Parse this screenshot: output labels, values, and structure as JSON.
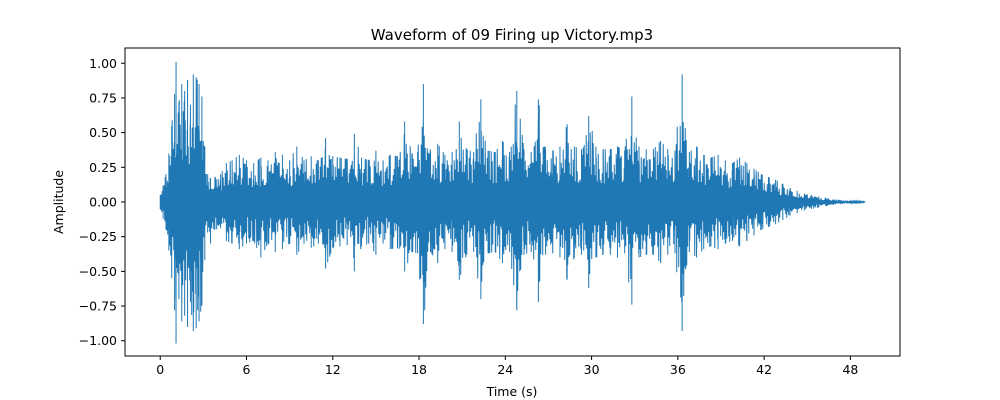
{
  "chart_data": {
    "type": "line",
    "title": "Waveform of 09 Firing up Victory.mp3",
    "xlabel": "Time (s)",
    "ylabel": "Amplitude",
    "xlim": [
      -2.45,
      51.45
    ],
    "ylim": [
      -1.11,
      1.11
    ],
    "x_ticks": [
      0,
      6,
      12,
      18,
      24,
      30,
      36,
      42,
      48
    ],
    "x_tick_labels": [
      "0",
      "6",
      "12",
      "18",
      "24",
      "30",
      "36",
      "42",
      "48"
    ],
    "y_ticks": [
      1.0,
      0.75,
      0.5,
      0.25,
      0.0,
      -0.25,
      -0.5,
      -0.75,
      -1.0
    ],
    "y_tick_labels": [
      "1.00",
      "0.75",
      "0.50",
      "0.25",
      "0.00",
      "−0.25",
      "−0.50",
      "−0.75",
      "−1.00"
    ],
    "grid": false,
    "series_color": "#1f77b4",
    "series": [
      {
        "x": [
          0.0,
          0.2,
          0.4,
          0.6,
          0.8,
          1.0,
          1.1,
          1.3,
          1.5,
          1.7,
          1.9,
          2.1,
          2.3,
          2.5,
          2.7,
          2.9,
          3.1,
          3.3,
          3.5,
          3.8,
          4.2,
          4.6,
          5.0,
          5.5,
          6.0,
          6.5,
          7.0,
          7.5,
          8.0,
          8.5,
          9.0,
          9.5,
          10.0,
          10.5,
          11.0,
          11.5,
          12.0,
          12.5,
          13.0,
          13.5,
          14.0,
          14.5,
          15.0,
          15.5,
          16.0,
          16.5,
          17.0,
          17.5,
          17.9,
          18.3,
          18.8,
          19.3,
          19.8,
          20.3,
          20.8,
          21.3,
          21.8,
          22.3,
          22.8,
          23.3,
          23.8,
          24.3,
          24.8,
          25.3,
          25.8,
          26.3,
          26.8,
          27.3,
          27.8,
          28.3,
          28.8,
          29.3,
          29.8,
          30.3,
          30.8,
          31.3,
          31.8,
          32.3,
          32.8,
          33.3,
          33.8,
          34.3,
          34.8,
          35.3,
          35.8,
          36.3,
          36.8,
          37.3,
          37.8,
          38.3,
          38.8,
          39.3,
          39.8,
          40.3,
          40.8,
          41.3,
          41.8,
          42.3,
          42.8,
          43.3,
          43.8,
          44.3,
          44.8,
          45.3,
          45.8,
          46.3,
          46.8,
          47.3,
          47.8,
          48.3,
          48.8,
          49.0
        ],
        "max": [
          0.05,
          0.12,
          0.2,
          0.35,
          0.55,
          0.78,
          1.01,
          0.72,
          0.85,
          0.8,
          0.88,
          0.7,
          0.92,
          0.9,
          0.85,
          0.76,
          0.4,
          0.2,
          0.17,
          0.18,
          0.2,
          0.28,
          0.3,
          0.34,
          0.3,
          0.28,
          0.32,
          0.3,
          0.36,
          0.34,
          0.3,
          0.4,
          0.3,
          0.33,
          0.3,
          0.46,
          0.33,
          0.32,
          0.31,
          0.49,
          0.32,
          0.3,
          0.37,
          0.3,
          0.34,
          0.33,
          0.58,
          0.35,
          0.36,
          0.85,
          0.36,
          0.42,
          0.34,
          0.36,
          0.58,
          0.38,
          0.36,
          0.74,
          0.37,
          0.36,
          0.44,
          0.36,
          0.8,
          0.38,
          0.36,
          0.74,
          0.38,
          0.37,
          0.4,
          0.56,
          0.4,
          0.38,
          0.62,
          0.4,
          0.38,
          0.38,
          0.4,
          0.37,
          0.76,
          0.4,
          0.38,
          0.38,
          0.44,
          0.38,
          0.37,
          0.92,
          0.36,
          0.4,
          0.34,
          0.32,
          0.34,
          0.3,
          0.28,
          0.32,
          0.28,
          0.24,
          0.2,
          0.18,
          0.16,
          0.13,
          0.1,
          0.08,
          0.06,
          0.05,
          0.04,
          0.03,
          0.02,
          0.015,
          0.01,
          0.008,
          0.005,
          0.004
        ],
        "min": [
          -0.05,
          -0.12,
          -0.2,
          -0.35,
          -0.55,
          -0.78,
          -1.02,
          -0.7,
          -0.86,
          -0.82,
          -0.9,
          -0.72,
          -0.93,
          -0.91,
          -0.86,
          -0.74,
          -0.42,
          -0.22,
          -0.3,
          -0.2,
          -0.19,
          -0.28,
          -0.3,
          -0.34,
          -0.3,
          -0.28,
          -0.4,
          -0.3,
          -0.36,
          -0.34,
          -0.3,
          -0.38,
          -0.3,
          -0.33,
          -0.3,
          -0.48,
          -0.33,
          -0.32,
          -0.31,
          -0.5,
          -0.32,
          -0.3,
          -0.38,
          -0.3,
          -0.34,
          -0.33,
          -0.5,
          -0.36,
          -0.37,
          -0.88,
          -0.36,
          -0.44,
          -0.34,
          -0.36,
          -0.56,
          -0.38,
          -0.36,
          -0.7,
          -0.37,
          -0.36,
          -0.44,
          -0.36,
          -0.78,
          -0.38,
          -0.36,
          -0.72,
          -0.38,
          -0.37,
          -0.4,
          -0.56,
          -0.4,
          -0.38,
          -0.62,
          -0.4,
          -0.38,
          -0.38,
          -0.4,
          -0.37,
          -0.74,
          -0.4,
          -0.38,
          -0.38,
          -0.44,
          -0.38,
          -0.37,
          -0.93,
          -0.36,
          -0.4,
          -0.34,
          -0.32,
          -0.34,
          -0.3,
          -0.28,
          -0.32,
          -0.28,
          -0.24,
          -0.2,
          -0.18,
          -0.16,
          -0.13,
          -0.1,
          -0.08,
          -0.06,
          -0.05,
          -0.04,
          -0.03,
          -0.02,
          -0.015,
          -0.01,
          -0.008,
          -0.005,
          -0.004
        ]
      }
    ]
  }
}
